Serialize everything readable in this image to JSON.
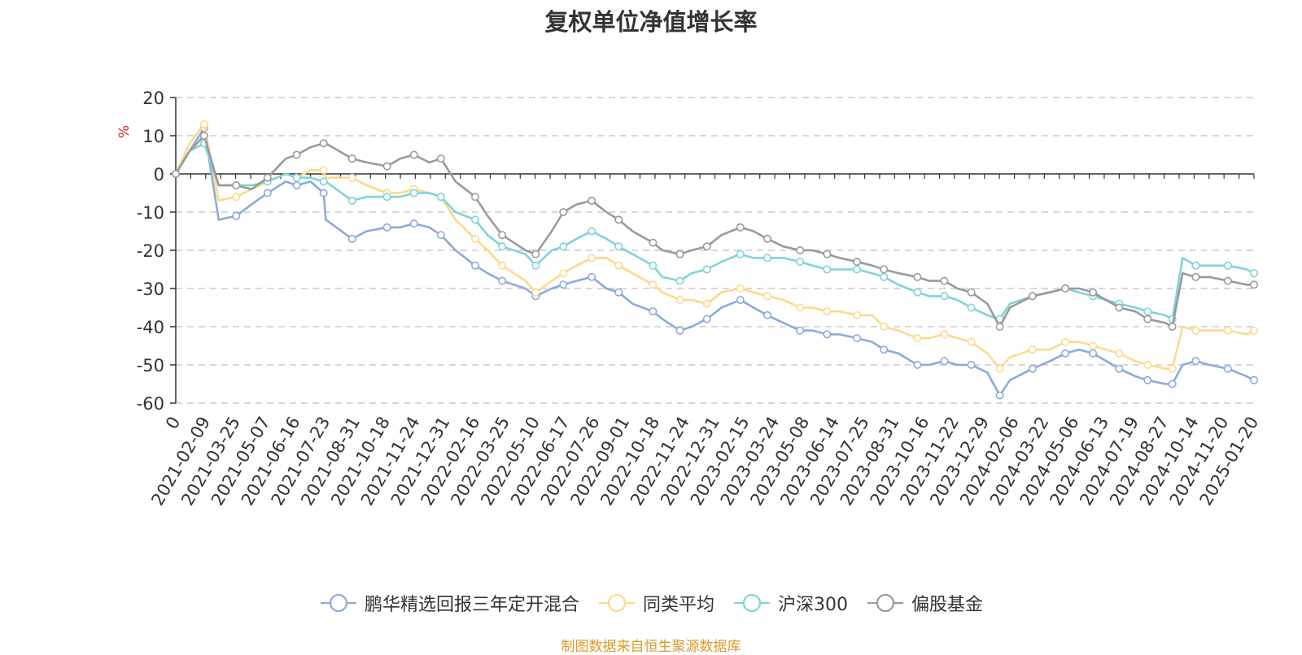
{
  "chart_data": {
    "type": "line",
    "title": "复权单位净值增长率",
    "ylabel": "%",
    "ylim": [
      -60,
      20
    ],
    "yticks": [
      -60,
      -50,
      -40,
      -30,
      -20,
      -10,
      0,
      10,
      20
    ],
    "x_tick_labels": [
      "0",
      "2021-02-09",
      "2021-03-25",
      "2021-05-07",
      "2021-06-16",
      "2021-07-23",
      "2021-08-31",
      "2021-10-18",
      "2021-11-24",
      "2021-12-31",
      "2022-02-16",
      "2022-03-25",
      "2022-05-10",
      "2022-06-17",
      "2022-07-26",
      "2022-09-01",
      "2022-10-18",
      "2022-11-24",
      "2022-12-31",
      "2023-02-15",
      "2023-03-24",
      "2023-05-08",
      "2023-06-14",
      "2023-07-25",
      "2023-08-31",
      "2023-10-16",
      "2023-11-22",
      "2023-12-29",
      "2024-02-06",
      "2024-03-22",
      "2024-05-06",
      "2024-06-13",
      "2024-07-19",
      "2024-08-27",
      "2024-10-14",
      "2024-11-20",
      "2025-01-20"
    ],
    "x": [
      "2021-01-01",
      "2021-01-20",
      "2021-02-09",
      "2021-03-01",
      "2021-03-25",
      "2021-04-15",
      "2021-05-07",
      "2021-06-01",
      "2021-06-16",
      "2021-07-05",
      "2021-07-23",
      "2021-07-26",
      "2021-08-31",
      "2021-09-20",
      "2021-10-18",
      "2021-11-05",
      "2021-11-24",
      "2021-12-15",
      "2021-12-31",
      "2022-01-20",
      "2022-02-16",
      "2022-03-05",
      "2022-03-25",
      "2022-04-26",
      "2022-05-10",
      "2022-06-01",
      "2022-06-17",
      "2022-07-05",
      "2022-07-26",
      "2022-08-15",
      "2022-09-01",
      "2022-09-20",
      "2022-10-18",
      "2022-10-31",
      "2022-11-24",
      "2022-12-10",
      "2022-12-31",
      "2023-01-20",
      "2023-02-15",
      "2023-03-05",
      "2023-03-24",
      "2023-04-15",
      "2023-05-08",
      "2023-05-25",
      "2023-06-14",
      "2023-07-01",
      "2023-07-25",
      "2023-08-15",
      "2023-08-31",
      "2023-09-20",
      "2023-10-16",
      "2023-11-01",
      "2023-11-22",
      "2023-12-10",
      "2023-12-29",
      "2024-01-20",
      "2024-02-06",
      "2024-02-20",
      "2024-03-22",
      "2024-04-15",
      "2024-05-06",
      "2024-05-25",
      "2024-06-13",
      "2024-07-01",
      "2024-07-19",
      "2024-08-10",
      "2024-08-27",
      "2024-09-20",
      "2024-09-30",
      "2024-10-14",
      "2024-11-01",
      "2024-11-20",
      "2024-12-15",
      "2025-01-10",
      "2025-01-20"
    ],
    "series": [
      {
        "name": "鹏华精选回报三年定开混合",
        "color": "#8caadb",
        "values": [
          0,
          6,
          12,
          -12,
          -11,
          -8,
          -5,
          -2,
          -3,
          -2,
          -5,
          -12,
          -17,
          -15,
          -14,
          -14,
          -13,
          -14,
          -16,
          -20,
          -24,
          -26,
          -28,
          -30,
          -32,
          -30,
          -29,
          -28,
          -27,
          -30,
          -31,
          -34,
          -36,
          -38,
          -41,
          -40,
          -38,
          -35,
          -33,
          -35,
          -37,
          -39,
          -41,
          -41,
          -42,
          -42,
          -43,
          -44,
          -46,
          -47,
          -50,
          -50,
          -49,
          -50,
          -50,
          -52,
          -58,
          -54,
          -51,
          -49,
          -47,
          -46,
          -47,
          -49,
          -51,
          -53,
          -54,
          -55,
          -55,
          -50,
          -49,
          -50,
          -51,
          -53,
          -54
        ]
      },
      {
        "name": "同类平均",
        "color": "#fdd98d",
        "values": [
          0,
          8,
          13,
          -7,
          -6,
          -4,
          -2,
          0,
          -1,
          1,
          1,
          -1,
          -1,
          -3,
          -5,
          -5,
          -4,
          -5,
          -6,
          -12,
          -17,
          -20,
          -24,
          -28,
          -31,
          -28,
          -26,
          -24,
          -22,
          -22,
          -24,
          -26,
          -29,
          -31,
          -33,
          -33,
          -34,
          -31,
          -30,
          -31,
          -32,
          -33,
          -35,
          -35,
          -36,
          -36,
          -37,
          -37,
          -40,
          -41,
          -43,
          -43,
          -42,
          -43,
          -44,
          -47,
          -51,
          -48,
          -46,
          -46,
          -44,
          -44,
          -45,
          -46,
          -47,
          -49,
          -50,
          -51,
          -51,
          -40,
          -41,
          -41,
          -41,
          -42,
          -41
        ]
      },
      {
        "name": "沪深300",
        "color": "#7fd4d8",
        "values": [
          0,
          6,
          8,
          -3,
          -3,
          -3,
          -2,
          0,
          -1,
          -1,
          -2,
          -2,
          -7,
          -6,
          -6,
          -6,
          -5,
          -5,
          -6,
          -10,
          -12,
          -16,
          -19,
          -21,
          -24,
          -20,
          -19,
          -17,
          -15,
          -17,
          -19,
          -21,
          -24,
          -27,
          -28,
          -26,
          -25,
          -23,
          -21,
          -22,
          -22,
          -22,
          -23,
          -24,
          -25,
          -25,
          -25,
          -26,
          -27,
          -29,
          -31,
          -32,
          -32,
          -33,
          -35,
          -37,
          -38,
          -34,
          -32,
          -31,
          -30,
          -31,
          -32,
          -33,
          -34,
          -35,
          -36,
          -37,
          -38,
          -22,
          -24,
          -24,
          -24,
          -25,
          -26
        ]
      },
      {
        "name": "偏股基金",
        "color": "#9a9a9a",
        "values": [
          0,
          6,
          10,
          -3,
          -3,
          -4,
          -1,
          4,
          5,
          7,
          8,
          8,
          4,
          3,
          2,
          4,
          5,
          3,
          4,
          -2,
          -6,
          -11,
          -16,
          -20,
          -21,
          -15,
          -10,
          -8,
          -7,
          -10,
          -12,
          -15,
          -18,
          -20,
          -21,
          -20,
          -19,
          -16,
          -14,
          -15,
          -17,
          -19,
          -20,
          -20,
          -21,
          -22,
          -23,
          -24,
          -25,
          -26,
          -27,
          -28,
          -28,
          -30,
          -31,
          -34,
          -40,
          -35,
          -32,
          -31,
          -30,
          -30,
          -31,
          -33,
          -35,
          -36,
          -38,
          -39,
          -40,
          -26,
          -27,
          -27,
          -28,
          -29,
          -29
        ]
      }
    ],
    "grid": "horizontal-dashed",
    "legend_position": "bottom-center"
  },
  "source_note": "制图数据来自恒生聚源数据库"
}
